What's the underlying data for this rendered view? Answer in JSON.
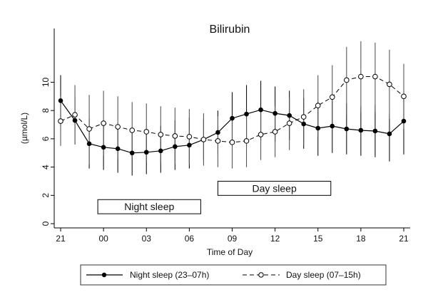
{
  "chart_data": {
    "type": "line",
    "title": "Bilirubin",
    "xlabel": "Time of Day",
    "ylabel": "(µmol/L)",
    "x_hours": [
      21,
      22,
      23,
      24,
      25,
      26,
      27,
      28,
      29,
      30,
      31,
      32,
      33,
      34,
      35,
      36,
      37,
      38,
      39,
      40,
      41,
      42,
      43,
      44,
      45
    ],
    "x_range": [
      21,
      45
    ],
    "x_ticks": [
      {
        "value": 21,
        "label": "21"
      },
      {
        "value": 24,
        "label": "00"
      },
      {
        "value": 27,
        "label": "03"
      },
      {
        "value": 30,
        "label": "06"
      },
      {
        "value": 33,
        "label": "09"
      },
      {
        "value": 36,
        "label": "12"
      },
      {
        "value": 39,
        "label": "15"
      },
      {
        "value": 42,
        "label": "18"
      },
      {
        "value": 45,
        "label": "21"
      }
    ],
    "ylim": [
      -0.3,
      13.8
    ],
    "y_ticks": [
      0,
      2,
      4,
      6,
      8,
      10
    ],
    "grid": false,
    "legend_position": "bottom",
    "series": [
      {
        "name": "Night sleep (23–07h)",
        "marker": "filled-circle",
        "line": "solid",
        "values": [
          8.7,
          7.3,
          5.65,
          5.4,
          5.3,
          5.0,
          5.05,
          5.15,
          5.45,
          5.55,
          5.95,
          6.45,
          7.45,
          7.75,
          8.05,
          7.8,
          7.65,
          7.05,
          6.75,
          6.9,
          6.7,
          6.6,
          6.55,
          6.35,
          7.25
        ],
        "err_upper": [
          10.5,
          9.0,
          7.4,
          7.2,
          7.0,
          6.5,
          6.6,
          6.9,
          7.3,
          7.5,
          7.4,
          8.0,
          9.3,
          9.8,
          10.1,
          9.7,
          9.4,
          8.9,
          8.6,
          8.7,
          8.5,
          8.3,
          8.4,
          7.8,
          8.8
        ],
        "err_lower": [
          6.9,
          5.6,
          3.9,
          3.8,
          3.6,
          3.4,
          3.5,
          3.6,
          3.8,
          3.9,
          4.5,
          4.9,
          5.7,
          5.9,
          5.9,
          5.8,
          5.9,
          5.3,
          4.8,
          5.0,
          4.9,
          4.8,
          4.7,
          4.4,
          4.9
        ]
      },
      {
        "name": "Day sleep (07–15h)",
        "marker": "open-circle",
        "line": "dashed",
        "values": [
          7.25,
          7.7,
          6.7,
          7.1,
          6.85,
          6.6,
          6.5,
          6.3,
          6.2,
          6.15,
          5.95,
          5.85,
          5.75,
          5.85,
          6.3,
          6.5,
          7.1,
          7.55,
          8.35,
          8.95,
          10.15,
          10.4,
          10.4,
          9.85,
          9.0
        ],
        "err_upper": [
          9.0,
          9.8,
          9.1,
          9.4,
          9.0,
          8.6,
          8.5,
          8.3,
          8.2,
          8.1,
          7.8,
          7.6,
          7.5,
          7.6,
          8.1,
          8.3,
          8.9,
          9.5,
          10.5,
          11.2,
          12.5,
          12.9,
          12.8,
          12.3,
          11.3
        ],
        "err_lower": [
          5.5,
          5.6,
          4.2,
          4.8,
          4.6,
          4.5,
          4.4,
          4.3,
          4.2,
          4.2,
          4.1,
          4.0,
          3.9,
          4.0,
          4.5,
          4.7,
          5.2,
          5.5,
          6.2,
          6.6,
          7.7,
          7.9,
          7.9,
          7.4,
          6.7
        ]
      }
    ],
    "annotations": [
      {
        "text": "Night sleep",
        "x_start": 23.6,
        "x_end": 30.8,
        "y_top": 1.7,
        "y_bottom": 0.7
      },
      {
        "text": "Day sleep",
        "x_start": 32.0,
        "x_end": 39.9,
        "y_top": 3.0,
        "y_bottom": 2.0
      }
    ]
  }
}
